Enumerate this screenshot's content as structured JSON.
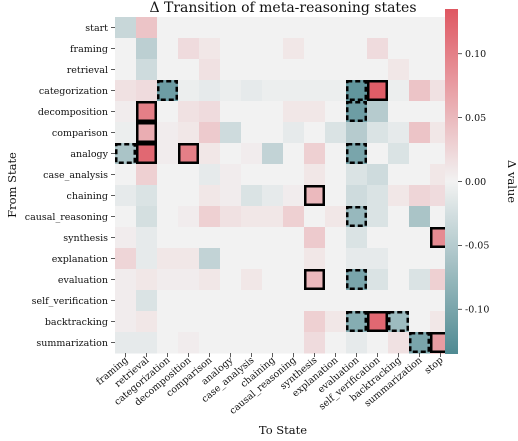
{
  "chart_data": {
    "type": "heatmap",
    "title": "Δ Transition of meta-reasoning states",
    "xlabel": "To State",
    "ylabel": "From State",
    "colorbar_label": "Δ value",
    "vmin": -0.135,
    "vmax": 0.135,
    "colorbar_ticks": [
      0.1,
      0.05,
      0.0,
      -0.05,
      -0.1
    ],
    "colorbar_tick_labels": [
      "0.10",
      "0.05",
      "0.00",
      "-0.05",
      "-0.10"
    ],
    "colors": {
      "negative": "#4f8a92",
      "neutral": "#f2f2f2",
      "positive": "#df5762"
    },
    "rows": [
      "start",
      "framing",
      "retrieval",
      "categorization",
      "decomposition",
      "comparison",
      "analogy",
      "case_analysis",
      "chaining",
      "causal_reasoning",
      "synthesis",
      "explanation",
      "evaluation",
      "self_verification",
      "backtracking",
      "summarization"
    ],
    "columns": [
      "framing",
      "retrieval",
      "categorization",
      "decomposition",
      "comparison",
      "analogy",
      "case_analysis",
      "chaining",
      "causal_reasoning",
      "synthesis",
      "explanation",
      "evaluation",
      "self_verification",
      "backtracking",
      "summarization",
      "stop"
    ],
    "values": [
      [
        -0.035,
        0.04,
        0,
        0,
        0,
        0,
        0,
        0,
        0,
        0,
        0,
        0,
        0,
        0,
        0,
        0
      ],
      [
        0,
        -0.045,
        0,
        0.02,
        0.01,
        0,
        0,
        0,
        0.01,
        0,
        0,
        0,
        0.02,
        0,
        0,
        0
      ],
      [
        0,
        -0.03,
        0,
        0,
        0.015,
        0,
        0,
        0,
        0,
        0,
        0,
        0,
        0,
        0.01,
        0,
        0
      ],
      [
        0.015,
        0.02,
        -0.11,
        -0.005,
        -0.01,
        -0.005,
        -0.01,
        -0.005,
        -0.005,
        -0.005,
        -0.005,
        -0.12,
        0.13,
        -0.005,
        0.04,
        0.015
      ],
      [
        0.005,
        0.1,
        0,
        0.015,
        0.02,
        0,
        0,
        0,
        0.01,
        0.01,
        0,
        -0.11,
        -0.05,
        0,
        0,
        0
      ],
      [
        -0.005,
        0.06,
        0.005,
        0.01,
        0.035,
        -0.03,
        0,
        0,
        -0.01,
        0,
        -0.02,
        -0.05,
        -0.02,
        -0.01,
        0.04,
        0.01
      ],
      [
        -0.06,
        0.12,
        0.005,
        0.1,
        0.01,
        0,
        0.005,
        -0.04,
        0,
        0.03,
        0,
        -0.1,
        0,
        -0.02,
        0,
        0
      ],
      [
        0,
        0.03,
        0,
        0,
        -0.01,
        0.005,
        0,
        0,
        0,
        0.01,
        0,
        -0.02,
        -0.03,
        0,
        0,
        0.01
      ],
      [
        -0.01,
        -0.02,
        0,
        0,
        0.01,
        0.005,
        -0.02,
        -0.01,
        0.005,
        0.05,
        0,
        -0.03,
        -0.02,
        0.01,
        0.025,
        0.02
      ],
      [
        0,
        -0.025,
        0,
        0.005,
        0.03,
        0.015,
        0.01,
        0.01,
        0.03,
        0,
        0.01,
        -0.075,
        -0.02,
        0,
        -0.06,
        0
      ],
      [
        0.005,
        -0.01,
        0,
        0,
        0,
        0,
        0,
        0,
        0,
        0.035,
        0,
        -0.02,
        0,
        0,
        0,
        0.09
      ],
      [
        0.025,
        -0.01,
        0.01,
        0.01,
        -0.04,
        0,
        0,
        0,
        0,
        0.01,
        0,
        -0.01,
        -0.01,
        0,
        0,
        0
      ],
      [
        0.005,
        0.01,
        0.005,
        0.005,
        0.01,
        0,
        0.01,
        0,
        0,
        0.05,
        0,
        -0.1,
        -0.02,
        0,
        -0.02,
        0.03
      ],
      [
        0.005,
        -0.02,
        0,
        0,
        0,
        0,
        0,
        0,
        0,
        0,
        0,
        0,
        0,
        0,
        0,
        0
      ],
      [
        0.005,
        0.01,
        0,
        0,
        0,
        0,
        0,
        0,
        0,
        0.03,
        0.01,
        -0.09,
        0.12,
        -0.07,
        0,
        0.01
      ],
      [
        -0.01,
        -0.01,
        0,
        0.005,
        0,
        0,
        0,
        0,
        0,
        0.02,
        0,
        -0.01,
        0,
        0.015,
        -0.1,
        0.075
      ]
    ],
    "highlight_solid": [
      [
        3,
        12
      ],
      [
        4,
        1
      ],
      [
        5,
        1
      ],
      [
        6,
        1
      ],
      [
        6,
        3
      ],
      [
        8,
        9
      ],
      [
        10,
        15
      ],
      [
        12,
        9
      ],
      [
        14,
        12
      ],
      [
        15,
        15
      ]
    ],
    "highlight_dashed": [
      [
        3,
        2
      ],
      [
        3,
        11
      ],
      [
        4,
        11
      ],
      [
        6,
        0
      ],
      [
        6,
        11
      ],
      [
        9,
        11
      ],
      [
        12,
        11
      ],
      [
        14,
        11
      ],
      [
        14,
        13
      ],
      [
        15,
        14
      ]
    ]
  }
}
